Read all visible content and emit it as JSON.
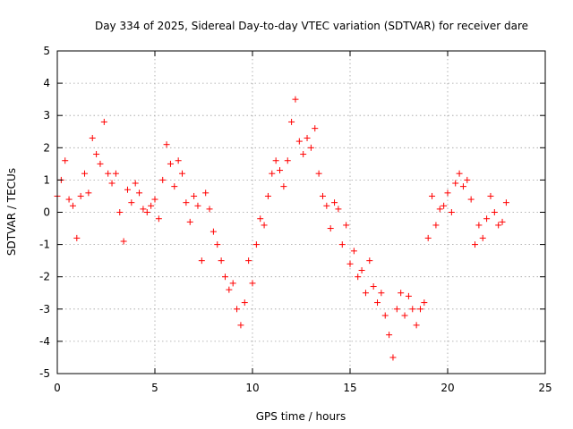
{
  "chart_data": {
    "type": "scatter",
    "title": "Day 334 of 2025, Sidereal Day-to-day VTEC variation (SDTVAR) for receiver dare",
    "xlabel": "GPS time / hours",
    "ylabel": "SDTVAR / TECUs",
    "xlim": [
      0,
      25
    ],
    "ylim": [
      -5,
      5
    ],
    "xticks": [
      0,
      5,
      10,
      15,
      20,
      25
    ],
    "yticks": [
      -5,
      -4,
      -3,
      -2,
      -1,
      0,
      1,
      2,
      3,
      4,
      5
    ],
    "grid": true,
    "marker": "+",
    "color": "#ff0000",
    "series": [
      {
        "name": "SDTVAR",
        "x": [
          0.0,
          0.2,
          0.4,
          0.6,
          0.8,
          1.0,
          1.2,
          1.4,
          1.6,
          1.8,
          2.0,
          2.2,
          2.4,
          2.6,
          2.8,
          3.0,
          3.2,
          3.4,
          3.6,
          3.8,
          4.0,
          4.2,
          4.4,
          4.6,
          4.8,
          5.0,
          5.2,
          5.4,
          5.6,
          5.8,
          6.0,
          6.2,
          6.4,
          6.6,
          6.8,
          7.0,
          7.2,
          7.4,
          7.6,
          7.8,
          8.0,
          8.2,
          8.4,
          8.6,
          8.8,
          9.0,
          9.2,
          9.4,
          9.6,
          9.8,
          10.0,
          10.2,
          10.4,
          10.6,
          10.8,
          11.0,
          11.2,
          11.4,
          11.6,
          11.8,
          12.0,
          12.2,
          12.4,
          12.6,
          12.8,
          13.0,
          13.2,
          13.4,
          13.6,
          13.8,
          14.0,
          14.2,
          14.4,
          14.6,
          14.8,
          15.0,
          15.2,
          15.4,
          15.6,
          15.8,
          16.0,
          16.2,
          16.4,
          16.6,
          16.8,
          17.0,
          17.2,
          17.4,
          17.6,
          17.8,
          18.0,
          18.2,
          18.4,
          18.6,
          18.8,
          19.0,
          19.2,
          19.4,
          19.6,
          19.8,
          20.0,
          20.2,
          20.4,
          20.6,
          20.8,
          21.0,
          21.2,
          21.4,
          21.6,
          21.8,
          22.0,
          22.2,
          22.4,
          22.6,
          22.8,
          23.0
        ],
        "y": [
          0.5,
          1.0,
          1.6,
          0.4,
          0.2,
          -0.8,
          0.5,
          1.2,
          0.6,
          2.3,
          1.8,
          1.5,
          2.8,
          1.2,
          0.9,
          1.2,
          0.0,
          -0.9,
          0.7,
          0.3,
          0.9,
          0.6,
          0.1,
          0.0,
          0.2,
          0.4,
          -0.2,
          1.0,
          2.1,
          1.5,
          0.8,
          1.6,
          1.2,
          0.3,
          -0.3,
          0.5,
          0.2,
          -1.5,
          0.6,
          0.1,
          -0.6,
          -1.0,
          -1.5,
          -2.0,
          -2.4,
          -2.2,
          -3.0,
          -3.5,
          -2.8,
          -1.5,
          -2.2,
          -1.0,
          -0.2,
          -0.4,
          0.5,
          1.2,
          1.6,
          1.3,
          0.8,
          1.6,
          2.8,
          3.5,
          2.2,
          1.8,
          2.3,
          2.0,
          2.6,
          1.2,
          0.5,
          0.2,
          -0.5,
          0.3,
          0.1,
          -1.0,
          -0.4,
          -1.6,
          -1.2,
          -2.0,
          -1.8,
          -2.5,
          -1.5,
          -2.3,
          -2.8,
          -2.5,
          -3.2,
          -3.8,
          -4.5,
          -3.0,
          -2.5,
          -3.2,
          -2.6,
          -3.0,
          -3.5,
          -3.0,
          -2.8,
          -0.8,
          0.5,
          -0.4,
          0.1,
          0.2,
          0.6,
          0.0,
          0.9,
          1.2,
          0.8,
          1.0,
          0.4,
          -1.0,
          -0.4,
          -0.8,
          -0.2,
          0.5,
          0.0,
          -0.4,
          -0.3,
          0.3
        ]
      }
    ]
  }
}
